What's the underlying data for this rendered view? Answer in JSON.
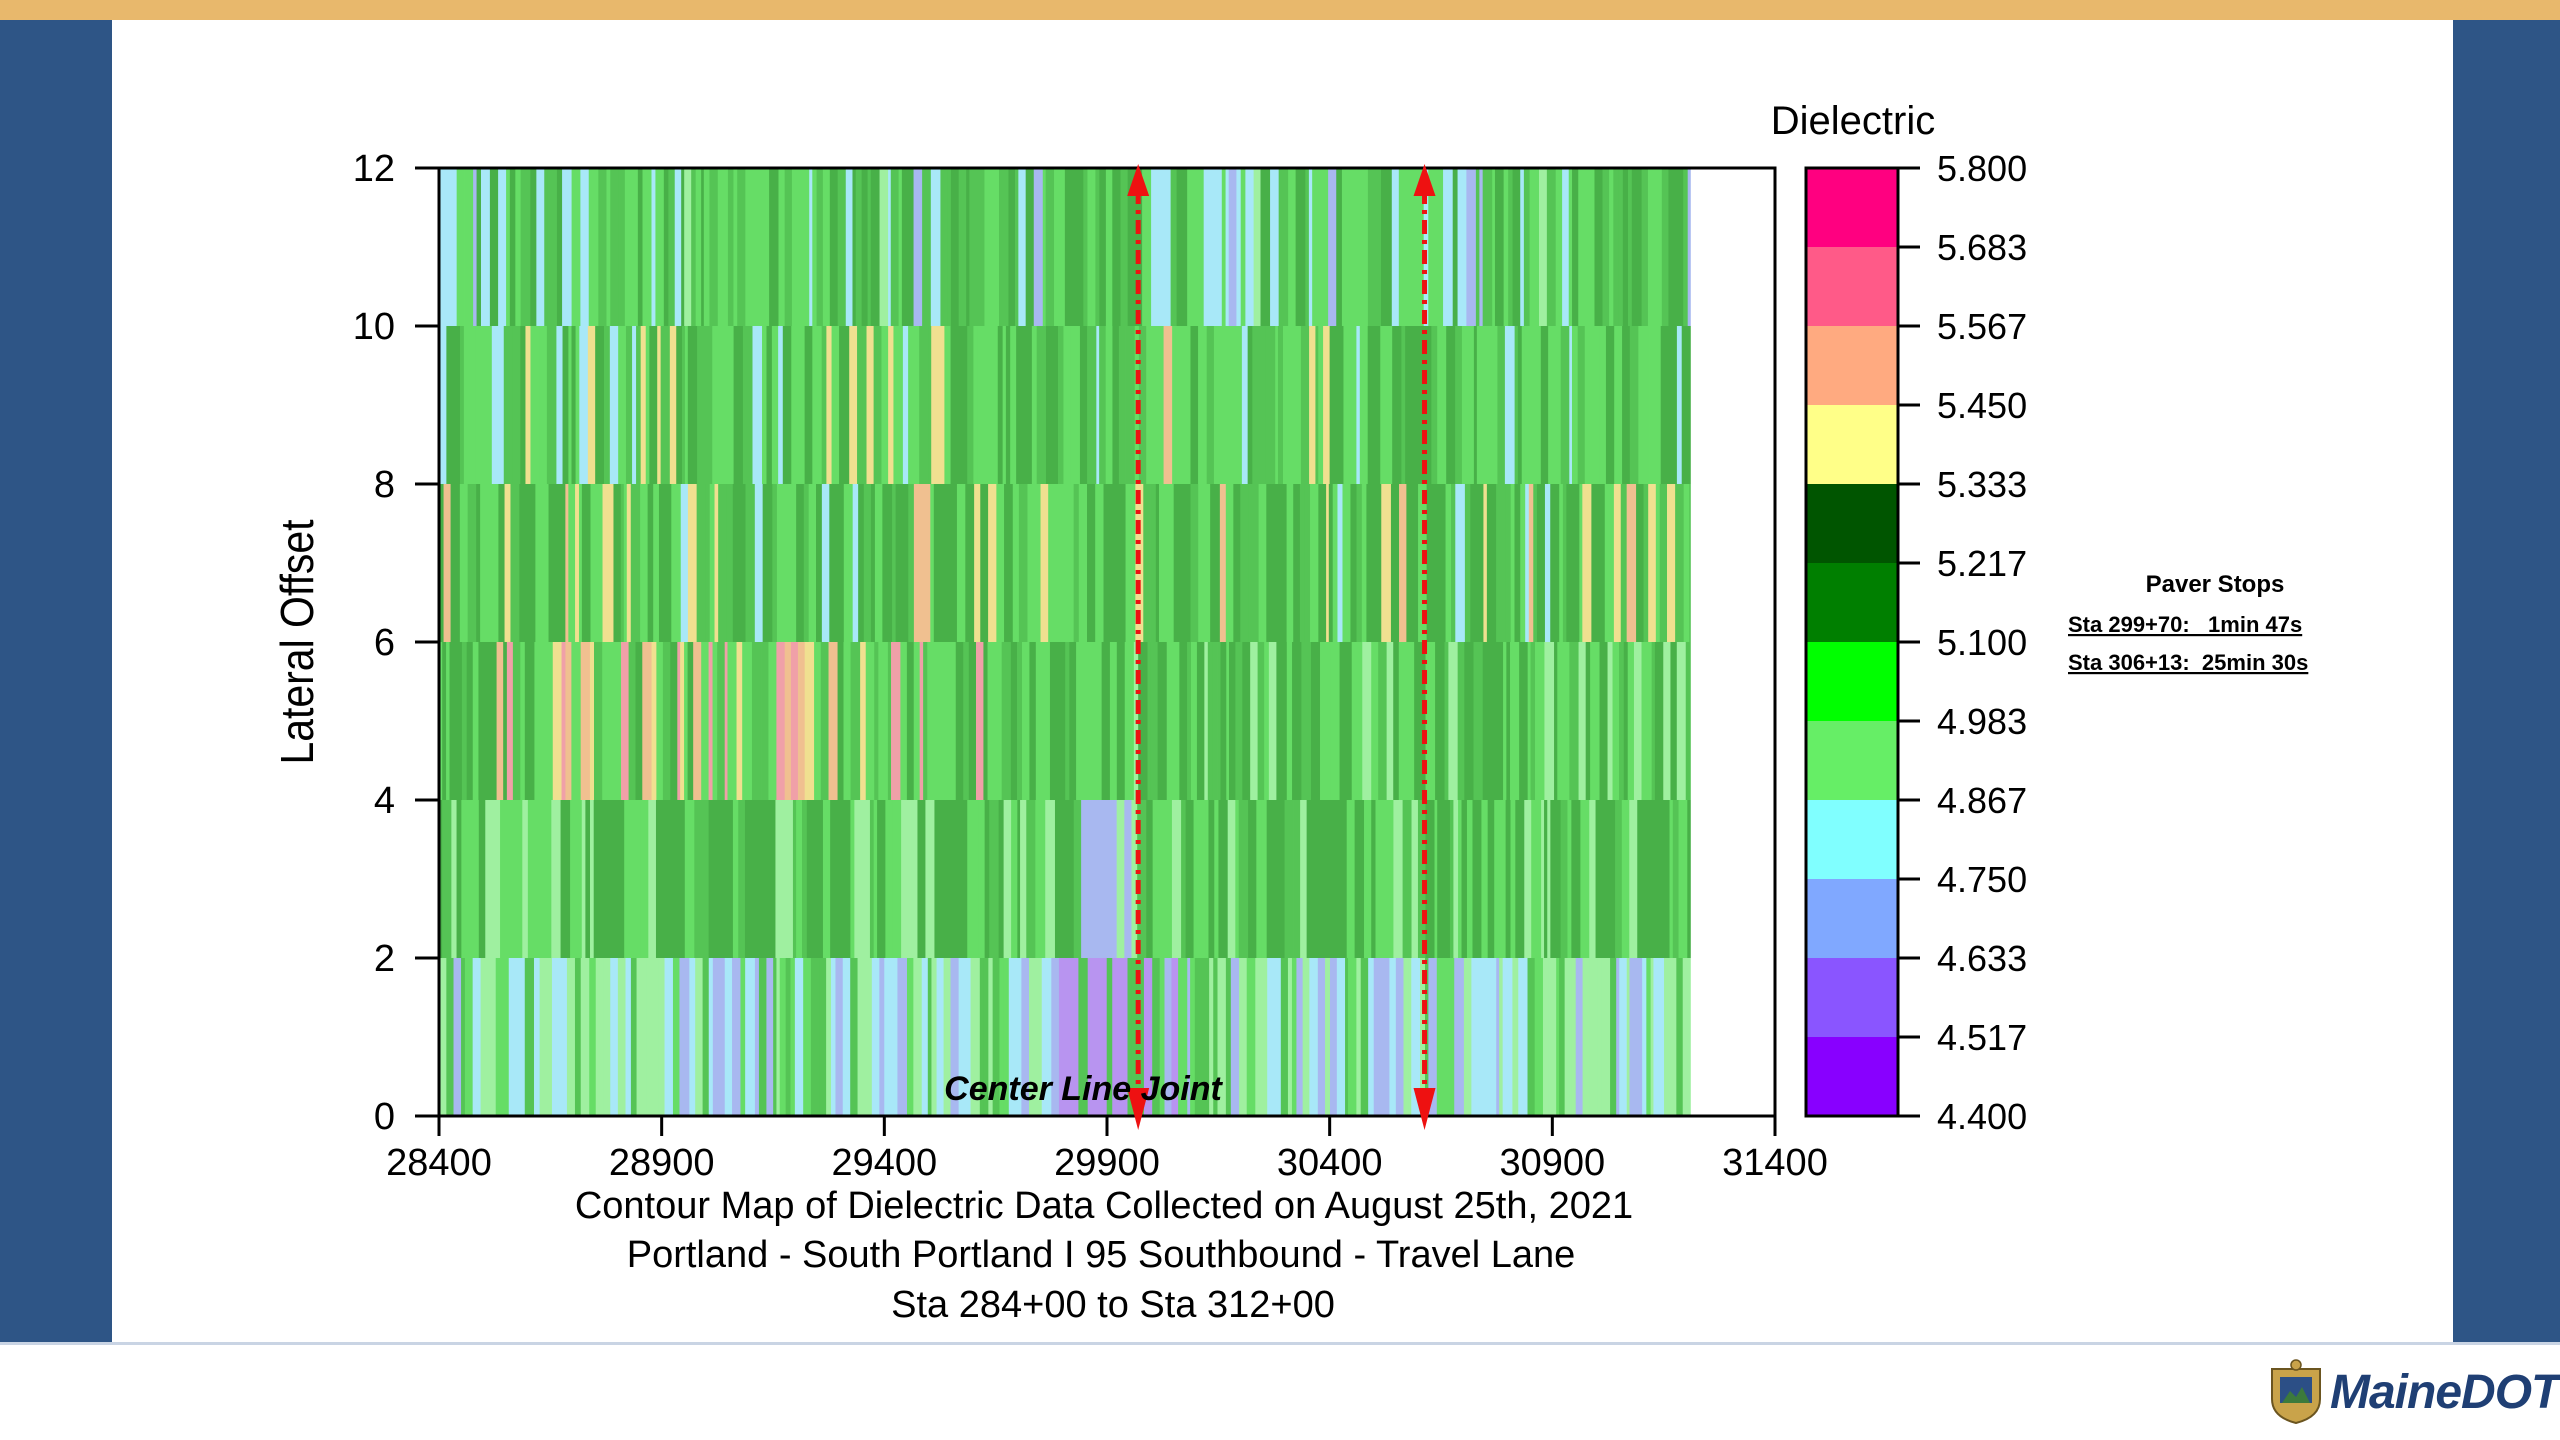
{
  "chart_data": {
    "type": "heatmap",
    "title_lines": [
      "Contour Map of Dielectric Data Collected on August 25th, 2021",
      "Portland - South Portland I 95 Southbound - Travel Lane",
      "Sta 284+00 to Sta 312+00"
    ],
    "xlabel": "",
    "ylabel": "Lateral Offset",
    "xlim": [
      28400,
      31400
    ],
    "ylim": [
      0,
      12
    ],
    "x_ticks": [
      "28400",
      "28900",
      "29400",
      "29900",
      "30400",
      "30900",
      "31400"
    ],
    "y_ticks": [
      "0",
      "2",
      "4",
      "6",
      "8",
      "10",
      "12"
    ],
    "data_x_range": [
      28400,
      31210
    ],
    "y_bands": [
      0,
      2,
      4,
      6,
      8,
      10,
      12
    ],
    "band_profiles": [
      "lower dielectric, mostly 4.633-4.983 with purple patches near 29800-30100",
      "mostly 4.983-5.217 green, purple patch 29850-29950",
      "mixed, pink/yellow streaks 28500-29600 up to 5.683",
      "mostly green with occasional yellow streaks",
      "mostly green with occasional yellow/orange streaks",
      "mostly green with some blue streaks"
    ],
    "colorbar": {
      "label": "Dielectric",
      "levels": [
        "5.800",
        "5.683",
        "5.567",
        "5.450",
        "5.333",
        "5.217",
        "5.100",
        "4.983",
        "4.867",
        "4.750",
        "4.633",
        "4.517",
        "4.400"
      ],
      "colors": [
        "#ff0080",
        "#ff5a88",
        "#ffaa80",
        "#ffff88",
        "#005500",
        "#007f00",
        "#00ff00",
        "#66ee66",
        "#80ffff",
        "#80a8ff",
        "#8a55ff",
        "#8800ff"
      ]
    },
    "annotations": {
      "center_line_label": "Center Line Joint",
      "paver_stop_x": [
        29970,
        30613
      ]
    },
    "legend": {
      "title": "Paver Stops",
      "items": [
        "Sta 299+70:   1min 47s",
        "Sta 306+13:  25min 30s"
      ]
    }
  },
  "branding": {
    "logo_text": "MaineDOT",
    "colors": {
      "top_bar": "#e8b86c",
      "side_bars": "#2e5586"
    }
  }
}
